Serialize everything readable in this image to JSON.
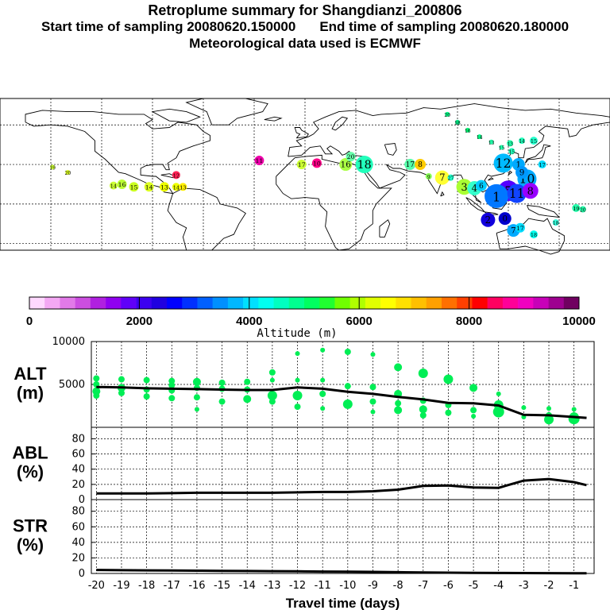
{
  "header": {
    "title": "Retroplume summary for Shangdianzi_200806",
    "start_label": "Start time of sampling 20080620.150000",
    "end_label": "End time of sampling 20080620.180000",
    "met_label": "Meteorological data used is ECMWF"
  },
  "colors": {
    "scale": [
      "#ffd8ff",
      "#f4a8f4",
      "#e27ae8",
      "#cc4ee0",
      "#b020e0",
      "#9000f0",
      "#6000f8",
      "#3c00f0",
      "#2000e0",
      "#0000ff",
      "#0030ff",
      "#0060ff",
      "#0090ff",
      "#00b8ff",
      "#00e0ff",
      "#00fff0",
      "#00ffc0",
      "#00ff90",
      "#00ff60",
      "#20ff30",
      "#70ff00",
      "#b0ff00",
      "#e0ff00",
      "#ffff00",
      "#ffe000",
      "#ffc000",
      "#ffa000",
      "#ff7000",
      "#ff4000",
      "#ff0000",
      "#ff0060",
      "#ff0098",
      "#f000c0",
      "#c800b8",
      "#9e0090",
      "#700060"
    ],
    "dot": "#00ee55",
    "line": "#000000"
  },
  "colorbar": {
    "title": "Altitude (m)",
    "tick_labels": [
      "0",
      "2000",
      "4000",
      "6000",
      "8000",
      "10000"
    ]
  },
  "map": {
    "labels": [
      {
        "lon": -149,
        "lat": 28,
        "text": "19",
        "color": "#ccff33",
        "r": 3
      },
      {
        "lon": -140,
        "lat": 24,
        "text": "20",
        "color": "#ddff22",
        "r": 3
      },
      {
        "lon": -113,
        "lat": 14,
        "text": "14",
        "color": "#ccff33",
        "r": 5
      },
      {
        "lon": -108,
        "lat": 15,
        "text": "16",
        "color": "#bbff33",
        "r": 6
      },
      {
        "lon": -101,
        "lat": 13,
        "text": "15",
        "color": "#ccff22",
        "r": 6
      },
      {
        "lon": -92,
        "lat": 13,
        "text": "14",
        "color": "#ddff22",
        "r": 6
      },
      {
        "lon": -83,
        "lat": 13,
        "text": "13",
        "color": "#eeff00",
        "r": 6
      },
      {
        "lon": -76,
        "lat": 13,
        "text": "14",
        "color": "#eeff00",
        "r": 5
      },
      {
        "lon": -72,
        "lat": 13,
        "text": "13",
        "color": "#ffee00",
        "r": 5
      },
      {
        "lon": -76,
        "lat": 22,
        "text": "12",
        "color": "#ff2255",
        "r": 5
      },
      {
        "lon": -27,
        "lat": 33,
        "text": "11",
        "color": "#ee00aa",
        "r": 6
      },
      {
        "lon": -2,
        "lat": 30,
        "text": "17",
        "color": "#ccff33",
        "r": 6
      },
      {
        "lon": 7,
        "lat": 31,
        "text": "10",
        "color": "#ff0088",
        "r": 6
      },
      {
        "lon": 24,
        "lat": 30,
        "text": "16",
        "color": "#aaff44",
        "r": 8
      },
      {
        "lon": 27,
        "lat": 36,
        "text": "20",
        "color": "#66ffaa",
        "r": 6
      },
      {
        "lon": 35,
        "lat": 30,
        "text": "18",
        "color": "#22ffbb",
        "r": 11
      },
      {
        "lon": 62,
        "lat": 30,
        "text": "17",
        "color": "#55ffaa",
        "r": 7
      },
      {
        "lon": 68,
        "lat": 30,
        "text": "8",
        "color": "#ffcc00",
        "r": 7
      },
      {
        "lon": 73,
        "lat": 21,
        "text": "9",
        "color": "#88ff55",
        "r": 4
      },
      {
        "lon": 81,
        "lat": 20,
        "text": "7",
        "color": "#ffff33",
        "r": 9
      },
      {
        "lon": 86,
        "lat": 20,
        "text": "27",
        "color": "#22ffcc",
        "r": 4
      },
      {
        "lon": 94,
        "lat": 13,
        "text": "3",
        "color": "#aaff33",
        "r": 10
      },
      {
        "lon": 100,
        "lat": 12,
        "text": "4",
        "color": "#33ffcc",
        "r": 9
      },
      {
        "lon": 104,
        "lat": 14,
        "text": "6",
        "color": "#00ccff",
        "r": 7
      },
      {
        "lon": 117,
        "lat": 31,
        "text": "12",
        "color": "#00bbff",
        "r": 12
      },
      {
        "lon": 126,
        "lat": 30,
        "text": "1",
        "color": "#00aaff",
        "r": 8
      },
      {
        "lon": 131,
        "lat": 19,
        "text": "10",
        "color": "#00aaff",
        "r": 12
      },
      {
        "lon": 120,
        "lat": 10,
        "text": "5",
        "color": "#5500ff",
        "r": 13
      },
      {
        "lon": 113,
        "lat": 6,
        "text": "1",
        "color": "#0077ff",
        "r": 15
      },
      {
        "lon": 125,
        "lat": 8,
        "text": "11",
        "color": "#1144ff",
        "r": 12
      },
      {
        "lon": 133,
        "lat": 10,
        "text": "8",
        "color": "#9900ff",
        "r": 10
      },
      {
        "lon": 128,
        "lat": 24,
        "text": "9",
        "color": "#0099ff",
        "r": 8
      },
      {
        "lon": 140,
        "lat": 30,
        "text": "17",
        "color": "#00ddff",
        "r": 5
      },
      {
        "lon": 108,
        "lat": -12,
        "text": "2",
        "color": "#1100dd",
        "r": 9
      },
      {
        "lon": 118,
        "lat": -11,
        "text": "0",
        "color": "#0000cc",
        "r": 8
      },
      {
        "lon": 123,
        "lat": -20,
        "text": "7",
        "color": "#00aaff",
        "r": 8
      },
      {
        "lon": 127,
        "lat": -18,
        "text": "17",
        "color": "#00ddff",
        "r": 6
      },
      {
        "lon": 135,
        "lat": -23,
        "text": "18",
        "color": "#00ffee",
        "r": 5
      },
      {
        "lon": 148,
        "lat": -14,
        "text": "18",
        "color": "#33ffdd",
        "r": 4
      },
      {
        "lon": 160,
        "lat": -3,
        "text": "19",
        "color": "#22ffaa",
        "r": 5
      },
      {
        "lon": 164,
        "lat": -4,
        "text": "20",
        "color": "#22ffaa",
        "r": 4
      },
      {
        "lon": 84,
        "lat": 68,
        "text": "20",
        "color": "#00ff88",
        "r": 3
      },
      {
        "lon": 90,
        "lat": 62,
        "text": "18",
        "color": "#00ee88",
        "r": 3
      },
      {
        "lon": 96,
        "lat": 56,
        "text": "16",
        "color": "#00ff77",
        "r": 3
      },
      {
        "lon": 103,
        "lat": 51,
        "text": "14",
        "color": "#00ff88",
        "r": 3
      },
      {
        "lon": 110,
        "lat": 47,
        "text": "13",
        "color": "#22ffaa",
        "r": 3
      },
      {
        "lon": 116,
        "lat": 43,
        "text": "15",
        "color": "#22ffaa",
        "r": 3
      },
      {
        "lon": 121,
        "lat": 46,
        "text": "13",
        "color": "#22ffaa",
        "r": 4
      },
      {
        "lon": 122,
        "lat": 40,
        "text": "15",
        "color": "#22ffbb",
        "r": 4
      },
      {
        "lon": 128,
        "lat": 48,
        "text": "14",
        "color": "#22ffbb",
        "r": 4
      },
      {
        "lon": 135,
        "lat": 48,
        "text": "15",
        "color": "#22ffcc",
        "r": 5
      }
    ]
  },
  "chart_data": [
    {
      "type": "scatter",
      "panel_label_top": "ALT",
      "panel_label_bottom": "(m)",
      "x_range": [
        -20.2,
        -0.2
      ],
      "ylim": [
        0,
        10000
      ],
      "ytick_labels": [
        "10000",
        "5000"
      ],
      "y_ticks": [
        10000,
        5000
      ],
      "line": {
        "x": [
          -20,
          -19,
          -18,
          -17,
          -16,
          -15,
          -14,
          -13,
          -12,
          -11,
          -10,
          -9,
          -8,
          -7,
          -6,
          -5,
          -4,
          -3,
          -2,
          -1,
          -0.5
        ],
        "y": [
          4700,
          4650,
          4550,
          4500,
          4450,
          4400,
          4350,
          4350,
          4650,
          4500,
          4150,
          3900,
          3550,
          3250,
          2850,
          2800,
          2550,
          1450,
          1400,
          1200,
          1100
        ]
      },
      "points": [
        {
          "x": -20,
          "y": 5700,
          "s": 4
        },
        {
          "x": -20,
          "y": 5000,
          "s": 4
        },
        {
          "x": -20,
          "y": 4200,
          "s": 5
        },
        {
          "x": -20,
          "y": 3700,
          "s": 4
        },
        {
          "x": -19,
          "y": 5600,
          "s": 4
        },
        {
          "x": -19,
          "y": 4600,
          "s": 5
        },
        {
          "x": -19,
          "y": 4000,
          "s": 4
        },
        {
          "x": -18,
          "y": 5500,
          "s": 4
        },
        {
          "x": -18,
          "y": 4400,
          "s": 4
        },
        {
          "x": -18,
          "y": 3600,
          "s": 4
        },
        {
          "x": -17,
          "y": 5400,
          "s": 4
        },
        {
          "x": -17,
          "y": 4900,
          "s": 4
        },
        {
          "x": -17,
          "y": 4300,
          "s": 4
        },
        {
          "x": -17,
          "y": 3400,
          "s": 4
        },
        {
          "x": -16,
          "y": 5300,
          "s": 5
        },
        {
          "x": -16,
          "y": 4600,
          "s": 4
        },
        {
          "x": -16,
          "y": 3500,
          "s": 4
        },
        {
          "x": -16,
          "y": 2100,
          "s": 3
        },
        {
          "x": -15,
          "y": 5200,
          "s": 4
        },
        {
          "x": -15,
          "y": 4500,
          "s": 4
        },
        {
          "x": -15,
          "y": 3000,
          "s": 4
        },
        {
          "x": -14,
          "y": 5300,
          "s": 4
        },
        {
          "x": -14,
          "y": 4400,
          "s": 4
        },
        {
          "x": -14,
          "y": 3300,
          "s": 5
        },
        {
          "x": -13,
          "y": 6400,
          "s": 4
        },
        {
          "x": -13,
          "y": 5500,
          "s": 3
        },
        {
          "x": -13,
          "y": 3700,
          "s": 6
        },
        {
          "x": -13,
          "y": 3000,
          "s": 4
        },
        {
          "x": -12,
          "y": 8600,
          "s": 3
        },
        {
          "x": -12,
          "y": 5500,
          "s": 3
        },
        {
          "x": -12,
          "y": 3700,
          "s": 6
        },
        {
          "x": -12,
          "y": 2400,
          "s": 4
        },
        {
          "x": -11,
          "y": 9000,
          "s": 3
        },
        {
          "x": -11,
          "y": 5500,
          "s": 3
        },
        {
          "x": -11,
          "y": 3900,
          "s": 4
        },
        {
          "x": -11,
          "y": 2200,
          "s": 3
        },
        {
          "x": -10,
          "y": 8800,
          "s": 4
        },
        {
          "x": -10,
          "y": 4800,
          "s": 4
        },
        {
          "x": -10,
          "y": 2700,
          "s": 6
        },
        {
          "x": -9,
          "y": 8500,
          "s": 3
        },
        {
          "x": -9,
          "y": 4700,
          "s": 4
        },
        {
          "x": -9,
          "y": 3000,
          "s": 4
        },
        {
          "x": -9,
          "y": 1800,
          "s": 3
        },
        {
          "x": -8,
          "y": 7000,
          "s": 5
        },
        {
          "x": -8,
          "y": 3900,
          "s": 5
        },
        {
          "x": -8,
          "y": 2800,
          "s": 4
        },
        {
          "x": -8,
          "y": 2000,
          "s": 5
        },
        {
          "x": -7,
          "y": 6300,
          "s": 6
        },
        {
          "x": -7,
          "y": 3100,
          "s": 4
        },
        {
          "x": -7,
          "y": 2100,
          "s": 5
        },
        {
          "x": -7,
          "y": 1400,
          "s": 4
        },
        {
          "x": -6,
          "y": 5600,
          "s": 6
        },
        {
          "x": -6,
          "y": 2600,
          "s": 4
        },
        {
          "x": -6,
          "y": 1700,
          "s": 4
        },
        {
          "x": -5,
          "y": 4600,
          "s": 5
        },
        {
          "x": -5,
          "y": 2000,
          "s": 4
        },
        {
          "x": -5,
          "y": 1300,
          "s": 3
        },
        {
          "x": -4,
          "y": 3900,
          "s": 3
        },
        {
          "x": -4,
          "y": 2600,
          "s": 6
        },
        {
          "x": -4,
          "y": 1800,
          "s": 7
        },
        {
          "x": -3,
          "y": 2300,
          "s": 3
        },
        {
          "x": -3,
          "y": 1200,
          "s": 3
        },
        {
          "x": -2,
          "y": 2200,
          "s": 3
        },
        {
          "x": -2,
          "y": 1400,
          "s": 4
        },
        {
          "x": -2,
          "y": 900,
          "s": 6
        },
        {
          "x": -1,
          "y": 2100,
          "s": 3
        },
        {
          "x": -1,
          "y": 1200,
          "s": 6
        },
        {
          "x": -1,
          "y": 1000,
          "s": 7
        }
      ]
    },
    {
      "type": "line",
      "panel_label_top": "ABL",
      "panel_label_bottom": "(%)",
      "x_range": [
        -20.2,
        -0.2
      ],
      "ylim": [
        0,
        95
      ],
      "ytick_labels": [
        "80",
        "60",
        "40",
        "20",
        "0"
      ],
      "y_ticks": [
        80,
        60,
        40,
        20,
        0
      ],
      "x": [
        -20,
        -19,
        -18,
        -17,
        -16,
        -15,
        -14,
        -13,
        -12,
        -11,
        -10,
        -9,
        -8,
        -7,
        -6,
        -5,
        -4,
        -3,
        -2,
        -1,
        -0.5
      ],
      "y": [
        8,
        8,
        8,
        8.5,
        9,
        9,
        9,
        9,
        9.5,
        10,
        10,
        11,
        13,
        18,
        18.5,
        16,
        15.5,
        25,
        27,
        23,
        19
      ]
    },
    {
      "type": "line",
      "panel_label_top": "STR",
      "panel_label_bottom": "(%)",
      "x_range": [
        -20.2,
        -0.2
      ],
      "ylim": [
        0,
        95
      ],
      "ytick_labels": [
        "80",
        "60",
        "40",
        "20",
        "0"
      ],
      "y_ticks": [
        80,
        60,
        40,
        20,
        0
      ],
      "x": [
        -20,
        -19,
        -18,
        -17,
        -16,
        -15,
        -14,
        -13,
        -12,
        -11,
        -10,
        -9,
        -8,
        -7,
        -6,
        -5,
        -4,
        -3,
        -2,
        -1,
        -0.5
      ],
      "y": [
        4.5,
        4.2,
        4,
        3.8,
        3.6,
        3.4,
        3.2,
        3,
        2.8,
        2.5,
        2.2,
        2,
        1.6,
        1.2,
        1,
        0.8,
        0.6,
        0.5,
        0.4,
        0.3,
        0.3
      ],
      "xlabel": "Travel time (days)",
      "xtick_labels": [
        "-20",
        "-19",
        "-18",
        "-17",
        "-16",
        "-15",
        "-14",
        "-13",
        "-12",
        "-11",
        "-10",
        "-9",
        "-8",
        "-7",
        "-6",
        "-5",
        "-4",
        "-3",
        "-2",
        "-1"
      ]
    }
  ]
}
